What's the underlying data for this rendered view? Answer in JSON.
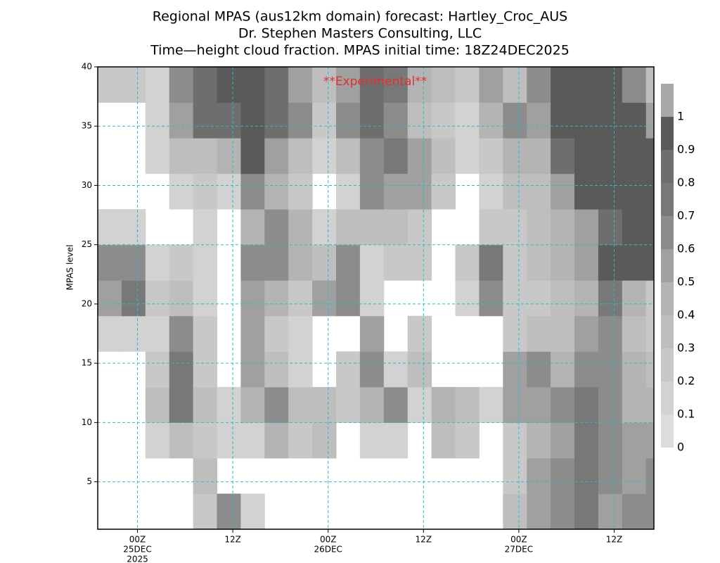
{
  "chart_data": {
    "type": "heatmap",
    "title": [
      "Regional MPAS (aus12km domain) forecast: Hartley_Croc_AUS",
      "Dr. Stephen Masters Consulting, LLC",
      "Time—height cloud fraction.    MPAS initial time: 18Z24DEC2025"
    ],
    "annotation": "**Experimental**",
    "annotation_color": "#e03030",
    "y_label": "MPAS level",
    "x": [
      -3.5,
      -0.5,
      2.5,
      5.5,
      8.5,
      11.5,
      14.5,
      17.5,
      20.5,
      23.5,
      26.5,
      29.5,
      32.5,
      35.5,
      38.5,
      41.5,
      44.5,
      47.5,
      50.5,
      53.5,
      56.5,
      59.5,
      62.5,
      65.5
    ],
    "y": [
      2.5,
      5.5,
      8.5,
      11.5,
      14.5,
      17.5,
      20.5,
      23.5,
      26.5,
      29.5,
      32.5,
      35.5,
      38.5
    ],
    "z": [
      [
        null,
        null,
        null,
        null,
        0.2,
        0.6,
        0.1,
        null,
        null,
        null,
        null,
        null,
        null,
        null,
        null,
        null,
        null,
        0.3,
        0.5,
        0.6,
        0.7,
        0.5,
        0.6,
        0.6
      ],
      [
        null,
        null,
        null,
        null,
        0.3,
        null,
        null,
        null,
        null,
        null,
        null,
        null,
        null,
        null,
        null,
        null,
        null,
        0.2,
        0.5,
        0.6,
        0.7,
        0.6,
        0.5,
        0.6
      ],
      [
        null,
        null,
        0.1,
        0.3,
        0.2,
        0.1,
        0.1,
        0.4,
        0.2,
        0.3,
        null,
        0.1,
        0.1,
        null,
        0.3,
        0.2,
        null,
        0.2,
        0.4,
        0.5,
        0.7,
        0.6,
        0.5,
        0.5
      ],
      [
        null,
        null,
        0.3,
        0.7,
        0.3,
        0.1,
        0.4,
        0.6,
        0.3,
        0.3,
        0.2,
        0.4,
        0.6,
        0.1,
        0.4,
        0.3,
        0.1,
        0.5,
        0.5,
        0.6,
        0.7,
        0.6,
        0.4,
        0.4
      ],
      [
        null,
        null,
        0.2,
        0.7,
        0.2,
        null,
        0.5,
        0.3,
        0.1,
        null,
        0.2,
        0.6,
        0.1,
        0.3,
        null,
        null,
        null,
        0.5,
        0.6,
        0.4,
        0.6,
        0.6,
        0.4,
        0.3
      ],
      [
        0.1,
        0.1,
        0.1,
        0.6,
        0.2,
        null,
        0.5,
        0.2,
        0.1,
        null,
        null,
        0.5,
        null,
        0.2,
        null,
        null,
        null,
        0.2,
        0.3,
        0.3,
        0.5,
        0.6,
        0.3,
        0.2
      ],
      [
        0.5,
        0.7,
        0.2,
        0.3,
        0.1,
        null,
        0.5,
        0.4,
        0.2,
        0.5,
        0.6,
        0.1,
        null,
        null,
        null,
        0.1,
        0.6,
        0.2,
        0.2,
        0.3,
        0.4,
        0.7,
        0.4,
        0.2
      ],
      [
        0.6,
        0.6,
        0.1,
        0.2,
        0.1,
        null,
        0.6,
        0.6,
        0.4,
        0.3,
        0.6,
        0.1,
        0.2,
        0.2,
        null,
        0.2,
        0.7,
        0.2,
        0.3,
        0.4,
        0.5,
        0.9,
        0.9,
        0.95
      ],
      [
        0.1,
        0.1,
        null,
        null,
        0.1,
        null,
        0.4,
        0.6,
        0.4,
        0.1,
        0.3,
        0.3,
        0.3,
        0.2,
        null,
        null,
        0.2,
        0.2,
        0.3,
        0.4,
        0.5,
        0.8,
        0.9,
        0.95
      ],
      [
        null,
        null,
        null,
        0.1,
        0.2,
        0.1,
        0.6,
        0.4,
        0.2,
        null,
        0.1,
        0.6,
        0.5,
        0.5,
        0.2,
        null,
        0.1,
        0.3,
        0.3,
        0.5,
        0.9,
        0.9,
        0.95,
        0.95
      ],
      [
        null,
        null,
        0.1,
        0.3,
        0.3,
        0.4,
        0.9,
        0.5,
        0.3,
        0.1,
        0.3,
        0.6,
        0.7,
        0.5,
        0.3,
        0.1,
        0.2,
        0.4,
        0.4,
        0.8,
        0.9,
        0.9,
        0.95,
        0.9
      ],
      [
        null,
        null,
        0.1,
        0.5,
        0.8,
        0.8,
        0.95,
        0.8,
        0.6,
        0.2,
        0.6,
        0.8,
        0.6,
        0.3,
        0.2,
        0.1,
        0.4,
        0.6,
        0.5,
        0.9,
        0.95,
        0.9,
        0.9,
        0.5
      ],
      [
        0.2,
        0.2,
        0.1,
        0.6,
        0.8,
        0.9,
        0.9,
        0.8,
        0.5,
        0.3,
        0.5,
        0.8,
        0.7,
        0.4,
        0.3,
        0.2,
        0.5,
        0.3,
        0.6,
        0.9,
        0.9,
        0.95,
        0.6,
        0.3
      ]
    ],
    "xlim": [
      -5,
      65
    ],
    "ylim": [
      1,
      40
    ],
    "xticks": [
      {
        "value": 0,
        "label": [
          "00Z",
          "25DEC",
          "2025"
        ]
      },
      {
        "value": 12,
        "label": [
          "12Z"
        ]
      },
      {
        "value": 24,
        "label": [
          "00Z",
          "26DEC"
        ]
      },
      {
        "value": 36,
        "label": [
          "12Z"
        ]
      },
      {
        "value": 48,
        "label": [
          "00Z",
          "27DEC"
        ]
      },
      {
        "value": 60,
        "label": [
          "12Z"
        ]
      }
    ],
    "yticks": [
      5,
      10,
      15,
      20,
      25,
      30,
      35,
      40
    ],
    "grid": true,
    "grid_color": "#20c0c8",
    "colorbar": {
      "levels": [
        0,
        0.1,
        0.2,
        0.3,
        0.4,
        0.5,
        0.6,
        0.7,
        0.8,
        0.9,
        1
      ],
      "colors": [
        "#dcdcdc",
        "#d2d2d2",
        "#c8c8c8",
        "#bebebe",
        "#b4b4b4",
        "#a0a0a0",
        "#8c8c8c",
        "#787878",
        "#6e6e6e",
        "#5a5a5a",
        "#a8a8a8"
      ]
    }
  }
}
